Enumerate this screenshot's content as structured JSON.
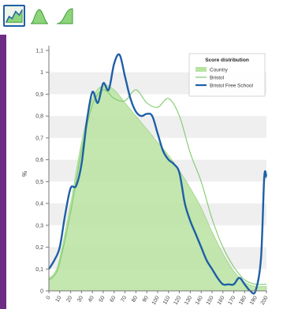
{
  "toolbar": {
    "buttons": [
      {
        "icon": "area-chart-icon",
        "active": true
      },
      {
        "icon": "bell-curve-icon",
        "active": false
      },
      {
        "icon": "cumulative-curve-icon",
        "active": false
      }
    ]
  },
  "colors": {
    "country_fill": "#b8e3a0",
    "bristol_line": "#7ccb6a",
    "school_line": "#1e5fa6",
    "band": "#efefef",
    "brand_strip": "#6d2d84"
  },
  "chart_data": {
    "type": "area",
    "ylabel": "%",
    "ylim": [
      0,
      1.1
    ],
    "yticks": [
      "0",
      "0,1",
      "0,2",
      "0,3",
      "0,4",
      "0,5",
      "0,6",
      "0,7",
      "0,8",
      "0,9",
      "1",
      "1,1"
    ],
    "xticks": [
      "0",
      "10",
      "20",
      "30",
      "40",
      "50",
      "60",
      "70",
      "80",
      "90",
      "100",
      "110",
      "120",
      "130",
      "140",
      "150",
      "160",
      "170",
      "180",
      "190",
      "200"
    ],
    "legend": {
      "title": "Score distribution",
      "entries": [
        "Country",
        "Bristol",
        "Bristol Free School"
      ],
      "position": "top-right"
    },
    "grid_bands": true,
    "series": [
      {
        "name": "Country",
        "style": "area",
        "x": [
          0,
          5,
          10,
          20,
          30,
          40,
          50,
          60,
          70,
          80,
          90,
          100,
          110,
          120,
          130,
          140,
          150,
          160,
          170,
          180,
          190,
          196,
          200
        ],
        "y": [
          0.06,
          0.08,
          0.15,
          0.4,
          0.68,
          0.88,
          0.94,
          0.92,
          0.86,
          0.8,
          0.74,
          0.68,
          0.62,
          0.55,
          0.47,
          0.38,
          0.27,
          0.17,
          0.09,
          0.04,
          0.02,
          0.02,
          0.02
        ]
      },
      {
        "name": "Bristol",
        "style": "line",
        "x": [
          0,
          5,
          10,
          20,
          30,
          40,
          50,
          60,
          70,
          80,
          90,
          100,
          110,
          120,
          130,
          140,
          150,
          160,
          170,
          180,
          190,
          196,
          200
        ],
        "y": [
          0.05,
          0.07,
          0.13,
          0.36,
          0.64,
          0.85,
          0.92,
          0.88,
          0.87,
          0.92,
          0.86,
          0.84,
          0.88,
          0.8,
          0.63,
          0.5,
          0.33,
          0.2,
          0.11,
          0.05,
          0.03,
          0.03,
          0.03
        ]
      },
      {
        "name": "Bristol Free School",
        "style": "line",
        "x": [
          0,
          5,
          10,
          15,
          20,
          25,
          30,
          35,
          40,
          45,
          50,
          55,
          60,
          65,
          70,
          75,
          80,
          85,
          90,
          95,
          100,
          105,
          110,
          115,
          120,
          125,
          130,
          135,
          140,
          145,
          150,
          155,
          160,
          165,
          170,
          175,
          180,
          185,
          190,
          195,
          198,
          200
        ],
        "y": [
          0.1,
          0.14,
          0.2,
          0.35,
          0.47,
          0.48,
          0.58,
          0.78,
          0.91,
          0.86,
          0.95,
          0.92,
          1.04,
          1.08,
          0.98,
          0.88,
          0.82,
          0.8,
          0.81,
          0.8,
          0.72,
          0.64,
          0.6,
          0.58,
          0.54,
          0.4,
          0.32,
          0.26,
          0.2,
          0.14,
          0.1,
          0.06,
          0.03,
          0.03,
          0.03,
          0.06,
          0.03,
          0.0,
          0.0,
          0.15,
          0.52,
          0.52
        ]
      }
    ]
  }
}
